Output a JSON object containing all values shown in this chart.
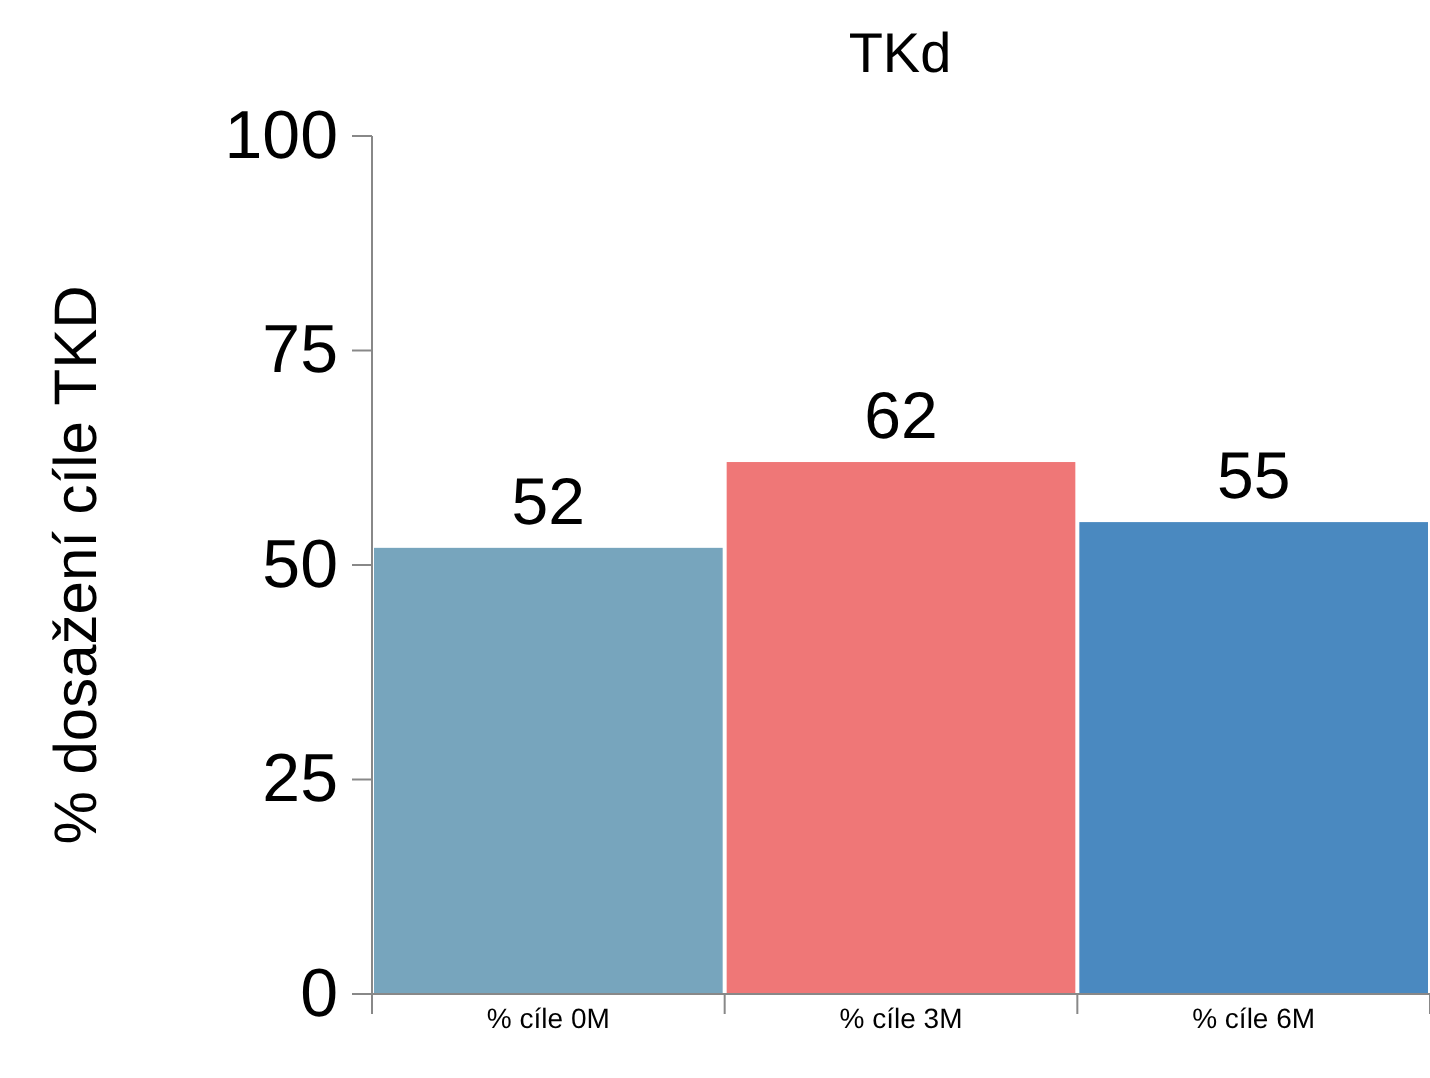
{
  "chart_data": {
    "type": "bar",
    "title": "TKd",
    "ylabel": "% dosažení cíle TKD",
    "categories": [
      "% cíle 0M",
      "% cíle 3M",
      "% cíle 6M"
    ],
    "values": [
      52,
      62,
      55
    ],
    "colors": [
      "#77a5bd",
      "#ef7777",
      "#4a89c0"
    ],
    "ylim": [
      0,
      100
    ],
    "yticks": [
      0,
      25,
      50,
      75,
      100
    ],
    "grid": false,
    "data_labels": true
  }
}
